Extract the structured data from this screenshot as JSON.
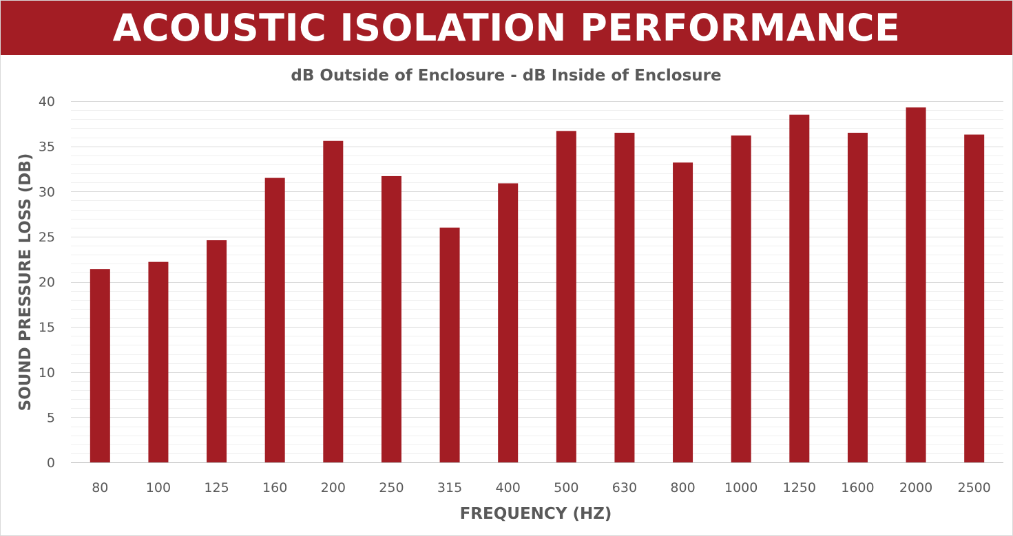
{
  "header": {
    "title": "ACOUSTIC ISOLATION PERFORMANCE"
  },
  "colors": {
    "banner": "#a31d24",
    "bar": "#a31d24",
    "text": "#595959",
    "grid_major": "#d9d9d9",
    "grid_minor": "#efefef"
  },
  "chart_data": {
    "type": "bar",
    "title": "dB Outside of Enclosure - dB Inside of Enclosure",
    "xlabel": "FREQUENCY (HZ)",
    "ylabel": "SOUND PRESSURE LOSS  (DB)",
    "ylim": [
      0,
      40
    ],
    "yticks": [
      0,
      5,
      10,
      15,
      20,
      25,
      30,
      35,
      40
    ],
    "grid": true,
    "legend": "none",
    "categories": [
      "80",
      "100",
      "125",
      "160",
      "200",
      "250",
      "315",
      "400",
      "500",
      "630",
      "800",
      "1000",
      "1250",
      "1600",
      "2000",
      "2500"
    ],
    "series": [
      {
        "name": "Sound Pressure Loss",
        "values": [
          21.4,
          22.2,
          24.6,
          31.5,
          35.6,
          31.7,
          26.0,
          30.9,
          36.7,
          36.5,
          33.2,
          36.2,
          38.5,
          36.5,
          39.3,
          36.3
        ]
      }
    ]
  }
}
